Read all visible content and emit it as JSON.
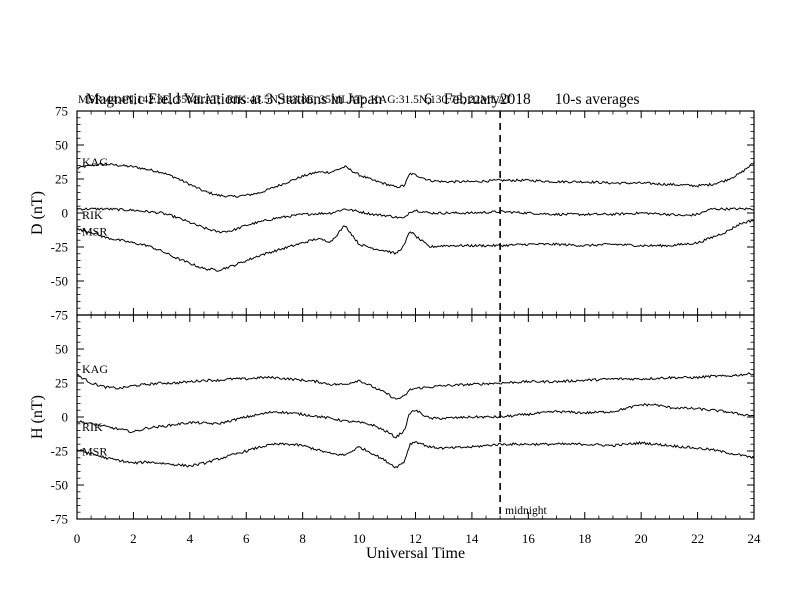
{
  "header": {
    "title": "Magnetic Field Variations at 3 Stations in Japan",
    "date_day": "6",
    "date_month_year": "February2018",
    "averaging": "10-s averages",
    "stations_line": "MSR:44.4N,142.3E, 35MLAT;  RIK:43.5N,143.8E, 35MLAT;  KAG:31.5N,130.7E, 22MLAT"
  },
  "chart_data": [
    {
      "type": "line",
      "panel": "D",
      "ylabel": "D (nT)",
      "xlabel": "Universal Time",
      "xlim": [
        0,
        24
      ],
      "ylim": [
        -75,
        75
      ],
      "yticks": [
        -75,
        -50,
        -25,
        0,
        25,
        50,
        75
      ],
      "xticks": [
        0,
        2,
        4,
        6,
        8,
        10,
        12,
        14,
        16,
        18,
        20,
        22,
        24
      ],
      "marker": {
        "x": 15,
        "label": "midnight",
        "style": "dashed"
      },
      "series": [
        {
          "name": "KAG",
          "x": [
            0,
            0.5,
            1,
            1.5,
            2,
            2.5,
            3,
            3.5,
            4,
            4.5,
            5,
            5.5,
            6,
            6.5,
            7,
            7.5,
            8,
            8.5,
            9,
            9.5,
            10,
            10.5,
            11,
            11.3,
            11.6,
            11.8,
            12,
            12.5,
            13,
            14,
            15,
            16,
            17,
            18,
            19,
            20,
            21,
            22,
            22.5,
            23,
            23.5,
            24
          ],
          "y": [
            33,
            35,
            36,
            35,
            34,
            32,
            30,
            26,
            21,
            16,
            13,
            12,
            13,
            15,
            19,
            23,
            27,
            30,
            30,
            34,
            28,
            24,
            21,
            19,
            20,
            29,
            28,
            24,
            23,
            23,
            24,
            24,
            23,
            23,
            22,
            22,
            21,
            20,
            21,
            24,
            29,
            37
          ]
        },
        {
          "name": "RIK",
          "x": [
            0,
            1,
            2,
            3,
            3.5,
            4,
            4.5,
            5,
            5.5,
            6,
            7,
            8,
            9,
            9.5,
            10,
            10.5,
            11,
            11.3,
            11.6,
            11.8,
            12,
            12.5,
            13,
            14,
            15,
            16,
            17,
            18,
            19,
            20,
            21,
            21.5,
            22,
            22.5,
            23,
            24
          ],
          "y": [
            3,
            3,
            2,
            0,
            -3,
            -7,
            -11,
            -14,
            -13,
            -9,
            -4,
            -1,
            0,
            3,
            1,
            -1,
            -2,
            -3,
            -4,
            1,
            2,
            0,
            0,
            0,
            1,
            0,
            -1,
            -1,
            -1,
            0,
            -1,
            -2,
            -1,
            3,
            3,
            3
          ]
        },
        {
          "name": "MSR",
          "x": [
            0,
            0.5,
            1,
            1.5,
            2,
            2.5,
            3,
            3.5,
            4,
            4.5,
            5,
            5.5,
            6,
            6.5,
            7,
            7.5,
            8,
            8.5,
            9,
            9.5,
            10,
            10.5,
            11,
            11.3,
            11.6,
            11.8,
            12,
            12.5,
            13,
            14,
            15,
            16,
            17,
            18,
            19,
            20,
            21,
            22,
            22.5,
            23,
            23.5,
            24
          ],
          "y": [
            -12,
            -14,
            -18,
            -20,
            -22,
            -24,
            -28,
            -33,
            -37,
            -41,
            -42,
            -39,
            -35,
            -31,
            -28,
            -25,
            -22,
            -19,
            -21,
            -9,
            -23,
            -26,
            -28,
            -30,
            -24,
            -13,
            -17,
            -25,
            -24,
            -24,
            -24,
            -23,
            -23,
            -24,
            -23,
            -24,
            -24,
            -22,
            -18,
            -14,
            -8,
            -5
          ]
        }
      ]
    },
    {
      "type": "line",
      "panel": "H",
      "ylabel": "H (nT)",
      "xlabel": "Universal Time",
      "xlim": [
        0,
        24
      ],
      "ylim": [
        -75,
        75
      ],
      "yticks": [
        -75,
        -50,
        -25,
        0,
        25,
        50,
        75
      ],
      "xticks": [
        0,
        2,
        4,
        6,
        8,
        10,
        12,
        14,
        16,
        18,
        20,
        22,
        24
      ],
      "series": [
        {
          "name": "KAG",
          "x": [
            0,
            0.5,
            1,
            1.5,
            2,
            2.5,
            3,
            3.5,
            4,
            4.5,
            5,
            5.5,
            6,
            6.5,
            7,
            7.5,
            8,
            8.5,
            9,
            9.5,
            10,
            10.5,
            11,
            11.3,
            11.6,
            11.8,
            12,
            12.5,
            13,
            14,
            15,
            16,
            17,
            18,
            19,
            20,
            21,
            22,
            22.5,
            23,
            23.5,
            24
          ],
          "y": [
            31,
            25,
            22,
            21,
            23,
            24,
            25,
            25,
            26,
            27,
            27,
            28,
            28,
            29,
            29,
            28,
            27,
            26,
            24,
            24,
            27,
            22,
            17,
            13,
            15,
            20,
            21,
            22,
            23,
            24,
            25,
            26,
            26,
            27,
            28,
            28,
            29,
            29,
            30,
            30,
            31,
            32
          ]
        },
        {
          "name": "RIK",
          "x": [
            0,
            0.5,
            1,
            1.5,
            2,
            2.5,
            3,
            4,
            5,
            6,
            7,
            8,
            9,
            9.5,
            10,
            10.5,
            11,
            11.3,
            11.6,
            11.8,
            12,
            12.5,
            13,
            14,
            15,
            16,
            17,
            18,
            19,
            20,
            20.5,
            21,
            22,
            23,
            23.5,
            24
          ],
          "y": [
            -3,
            -5,
            -7,
            -9,
            -11,
            -8,
            -7,
            -4,
            -5,
            0,
            4,
            2,
            -1,
            -3,
            -4,
            -6,
            -11,
            -15,
            -10,
            3,
            5,
            -1,
            -1,
            0,
            0,
            2,
            4,
            3,
            4,
            9,
            9,
            7,
            6,
            4,
            2,
            1
          ]
        },
        {
          "name": "MSR",
          "x": [
            0,
            0.5,
            1,
            1.5,
            2,
            2.5,
            3,
            3.5,
            4,
            4.5,
            5,
            5.5,
            6,
            6.5,
            7,
            7.5,
            8,
            8.5,
            9,
            9.5,
            10,
            10.5,
            11,
            11.3,
            11.6,
            11.8,
            12,
            12.5,
            13,
            14,
            15,
            16,
            17,
            18,
            19,
            20,
            21,
            22,
            22.5,
            23,
            23.5,
            24
          ],
          "y": [
            -24,
            -27,
            -30,
            -32,
            -34,
            -33,
            -34,
            -35,
            -36,
            -34,
            -31,
            -28,
            -25,
            -22,
            -20,
            -20,
            -21,
            -24,
            -27,
            -28,
            -22,
            -27,
            -33,
            -37,
            -33,
            -20,
            -18,
            -22,
            -23,
            -22,
            -20,
            -20,
            -20,
            -20,
            -21,
            -19,
            -21,
            -23,
            -24,
            -26,
            -28,
            -30
          ]
        }
      ]
    }
  ]
}
